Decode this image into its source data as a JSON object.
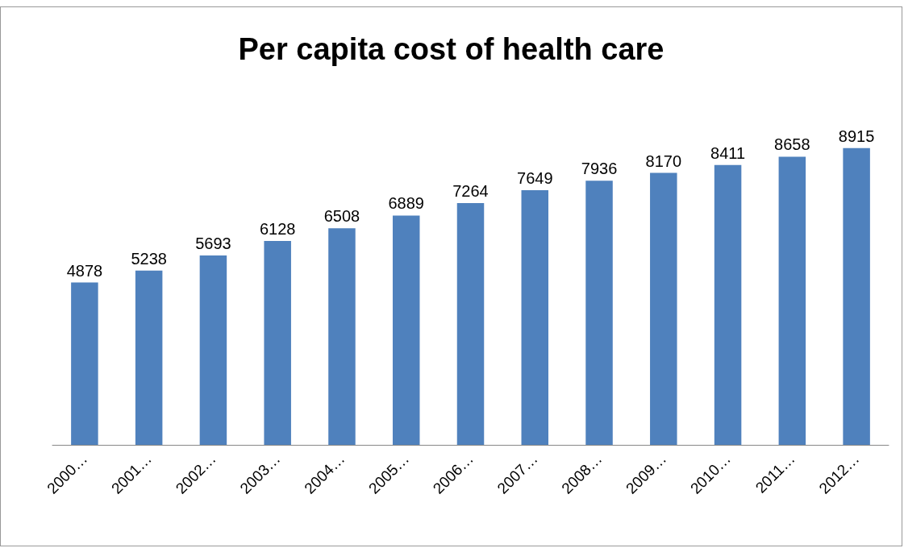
{
  "chart_data": {
    "type": "bar",
    "title": "Per capita cost of health care",
    "categories": [
      "2000…",
      "2001…",
      "2002…",
      "2003…",
      "2004…",
      "2005…",
      "2006…",
      "2007…",
      "2008…",
      "2009…",
      "2010…",
      "2011…",
      "2012…"
    ],
    "values": [
      4878,
      5238,
      5693,
      6128,
      6508,
      6889,
      7264,
      7649,
      7936,
      8170,
      8411,
      8658,
      8915
    ],
    "color": "#4f81bd",
    "data_labels": true,
    "grid": false
  }
}
